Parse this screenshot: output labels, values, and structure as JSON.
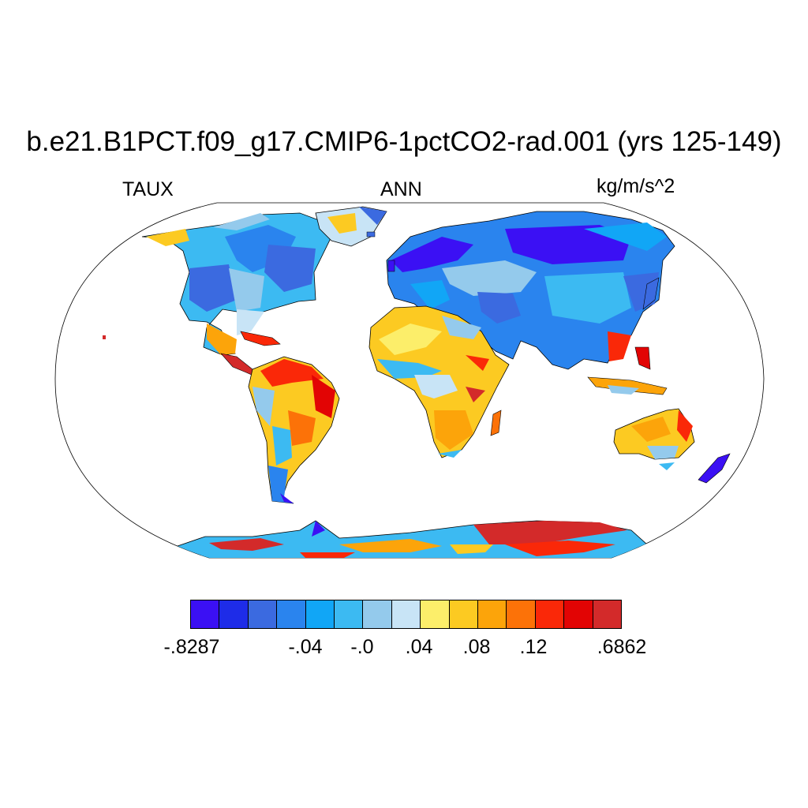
{
  "header": {
    "title": "b.e21.B1PCT.f09_g17.CMIP6-1pctCO2-rad.001 (yrs 125-149)",
    "left": "TAUX",
    "center": "ANN",
    "right": "kg/m/s^2"
  },
  "map": {
    "projection": "robinson",
    "field": "TAUX",
    "ocean_color": "#ffffff",
    "coastline_color": "#000000"
  },
  "colorbar": {
    "colors": [
      "#3b10f4",
      "#1e2ce8",
      "#3b6ae0",
      "#2a84ee",
      "#11a6f6",
      "#3cbaf2",
      "#94caec",
      "#c8e4f6",
      "#fcee6a",
      "#fcca22",
      "#fca40a",
      "#fc7208",
      "#fa2808",
      "#e20404",
      "#d32a2a"
    ],
    "labels": [
      "-.8287",
      "-.04",
      "-.0",
      ".04",
      ".08",
      ".12",
      ".6862"
    ]
  }
}
